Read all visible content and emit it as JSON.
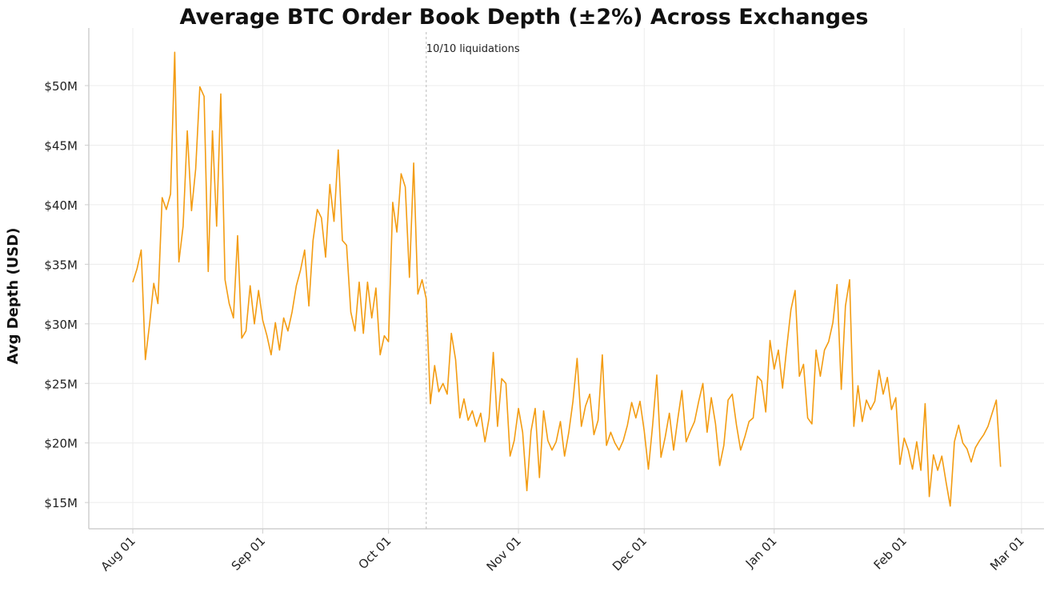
{
  "chart_data": {
    "type": "line",
    "title": "Average BTC Order Book Depth (±2%) Across Exchanges",
    "xlabel": "",
    "ylabel": "Avg Depth (USD)",
    "x_tick_labels": [
      "Aug 01",
      "Sep 01",
      "Oct 01",
      "Nov 01",
      "Dec 01",
      "Jan 01",
      "Feb 01",
      "Mar 01"
    ],
    "y_tick_labels": [
      "$15M",
      "$20M",
      "$25M",
      "$30M",
      "$35M",
      "$40M",
      "$45M",
      "$50M"
    ],
    "y_ticks": [
      15,
      20,
      25,
      30,
      35,
      40,
      45,
      50
    ],
    "y_unit": "USD millions",
    "grid": true,
    "line_color": "#F39C12",
    "annotation": {
      "label": "10/10 liquidations",
      "date": "Oct 10",
      "style": "dashed vertical line"
    },
    "series": [
      {
        "frequency": "daily",
        "by_month": [
          {
            "month": "Aug",
            "values": [
              33.5,
              34.6,
              36.2,
              27.0,
              30.0,
              33.4,
              31.7,
              40.6,
              39.6,
              40.9,
              52.8,
              35.2,
              38.2,
              46.2,
              39.5,
              43.0,
              49.9,
              49.1,
              34.4,
              46.2,
              38.2,
              49.3,
              33.7,
              31.7,
              30.5,
              37.4,
              28.8,
              29.4,
              33.2,
              30.0,
              32.8
            ]
          },
          {
            "month": "Sep",
            "values": [
              30.3,
              29.0,
              27.4,
              30.1,
              27.8,
              30.5,
              29.4,
              31.0,
              33.2,
              34.5,
              36.2,
              31.5,
              37.0,
              39.6,
              38.9,
              35.6,
              41.7,
              38.6,
              44.6,
              37.0,
              36.6,
              31.0,
              29.4,
              33.5,
              29.2,
              33.5,
              30.5,
              33.0,
              27.4,
              29.0
            ]
          },
          {
            "month": "Oct",
            "values": [
              28.5,
              40.2,
              37.7,
              42.6,
              41.5,
              33.9,
              43.5,
              32.5,
              33.7,
              32.1,
              23.3,
              26.5,
              24.3,
              25.0,
              24.1,
              29.2,
              27.0,
              22.1,
              23.7,
              21.9,
              22.7,
              21.4,
              22.5,
              20.1,
              22.1,
              27.6,
              21.4,
              25.4,
              25.0,
              18.9,
              20.2
            ]
          },
          {
            "month": "Nov",
            "values": [
              22.9,
              20.9,
              16.0,
              21.0,
              22.9,
              17.1,
              22.7,
              20.2,
              19.4,
              20.1,
              21.8,
              18.9,
              20.9,
              23.5,
              27.1,
              21.4,
              23.1,
              24.1,
              20.7,
              21.9,
              27.4,
              19.8,
              20.9,
              20.0,
              19.4,
              20.2,
              21.5,
              23.4,
              22.1,
              23.5
            ]
          },
          {
            "month": "Dec",
            "values": [
              21.0,
              17.8,
              21.5,
              25.7,
              18.8,
              20.5,
              22.5,
              19.4,
              22.0,
              24.4,
              20.1,
              21.0,
              21.8,
              23.5,
              25.0,
              20.9,
              23.8,
              21.6,
              18.1,
              19.8,
              23.6,
              24.1,
              21.5,
              19.4,
              20.5,
              21.8,
              22.1,
              25.6,
              25.2,
              22.6,
              28.6
            ]
          },
          {
            "month": "Jan",
            "values": [
              26.2,
              27.8,
              24.6,
              28.0,
              31.2,
              32.8,
              25.6,
              26.6,
              22.1,
              21.6,
              27.8,
              25.6,
              27.8,
              28.5,
              30.1,
              33.3,
              24.5,
              31.5,
              33.7,
              21.4,
              24.8,
              21.8,
              23.6,
              22.8,
              23.5,
              26.1,
              24.1,
              25.5,
              22.8,
              23.8,
              18.2
            ]
          },
          {
            "month": "Feb",
            "values": [
              20.4,
              19.4,
              17.8,
              20.1,
              17.7,
              23.3,
              15.5,
              19.0,
              17.7,
              18.9,
              16.7,
              14.7,
              20.1,
              21.5,
              20.0,
              19.5,
              18.4,
              19.6,
              20.2,
              20.7,
              21.4,
              22.5,
              23.6,
              18.0
            ]
          }
        ]
      }
    ]
  }
}
